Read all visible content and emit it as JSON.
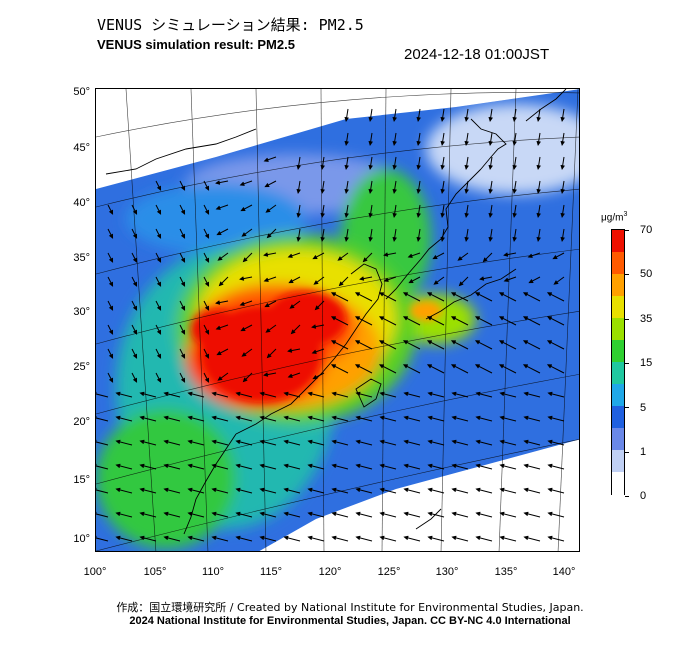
{
  "header": {
    "title_jp": "VENUS シミュレーション結果: PM2.5",
    "title_en": "VENUS simulation result: PM2.5",
    "timestamp": "2024-12-18 01:00JST"
  },
  "map": {
    "latitude_labels": [
      "50°",
      "45°",
      "40°",
      "35°",
      "30°",
      "25°",
      "20°",
      "15°",
      "10°"
    ],
    "longitude_labels": [
      "100°",
      "105°",
      "110°",
      "115°",
      "120°",
      "125°",
      "130°",
      "135°",
      "140°"
    ],
    "features": [
      "pm25-concentration-field",
      "wind-vectors",
      "coastlines",
      "graticule"
    ]
  },
  "colorbar": {
    "unit_base": "μg/m",
    "unit_exp": "3",
    "ticks": [
      "70",
      "50",
      "35",
      "15",
      "5",
      "1",
      "0"
    ],
    "colors": [
      "#ee1000",
      "#ff5a00",
      "#ffa000",
      "#e8e000",
      "#9be000",
      "#2fd030",
      "#20c8a0",
      "#20a8e8",
      "#2060e0",
      "#6a88e8",
      "#c0d0f4",
      "#ffffff"
    ]
  },
  "footer": {
    "credit_jp": "作成：国立環境研究所 / Created by National Institute for Environmental Studies, Japan.",
    "credit_en": "2024 National Institute for Environmental Studies, Japan. CC BY-NC 4.0 International"
  }
}
